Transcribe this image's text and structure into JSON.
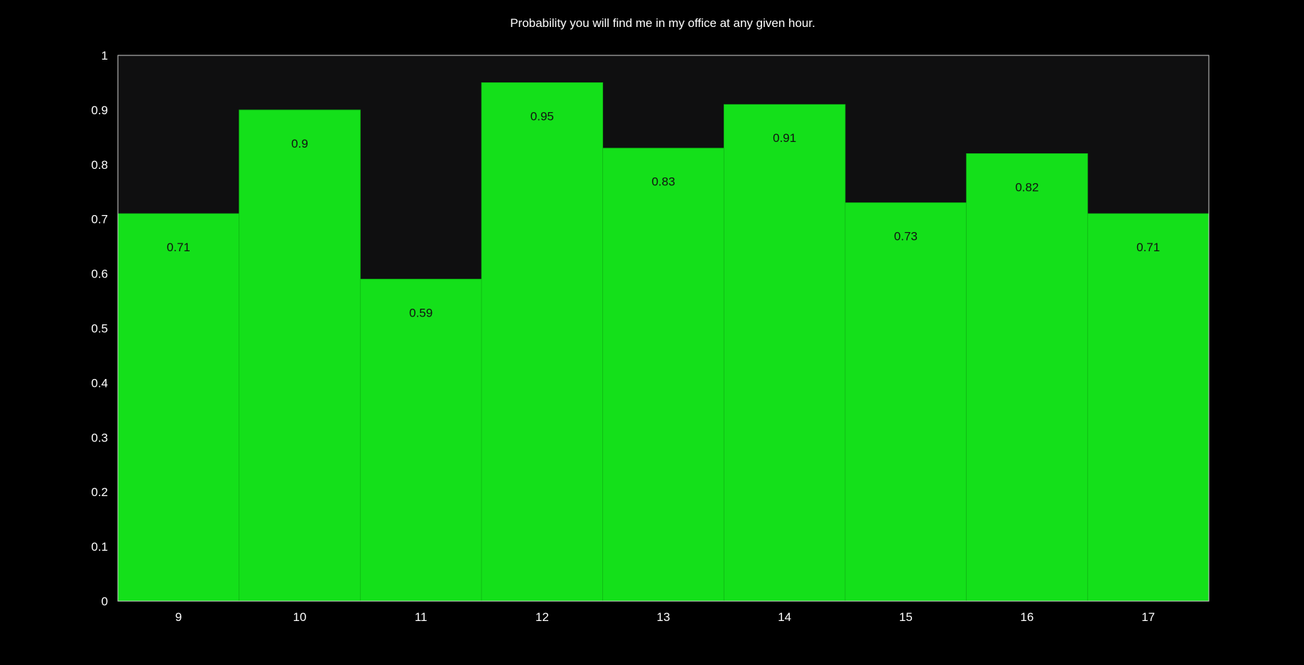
{
  "colors": {
    "background": "#000000",
    "plot_background": "#0f0f10",
    "bar_fill": "#14e01a",
    "bar_stroke": "#0fb814",
    "axis_frame": "#d0d0d0",
    "text": "#ffffff",
    "label_text": "#111111"
  },
  "chart_data": {
    "type": "bar",
    "title": "Probability you will find me in my office at any given hour.",
    "xlabel": "",
    "ylabel": "",
    "categories": [
      "9",
      "10",
      "11",
      "12",
      "13",
      "14",
      "15",
      "16",
      "17"
    ],
    "values": [
      0.71,
      0.9,
      0.59,
      0.95,
      0.83,
      0.91,
      0.73,
      0.82,
      0.71
    ],
    "data_labels": [
      "0.71",
      "0.9",
      "0.59",
      "0.95",
      "0.83",
      "0.91",
      "0.73",
      "0.82",
      "0.71"
    ],
    "ylim": [
      0,
      1
    ],
    "yticks": [
      "0",
      "0.1",
      "0.2",
      "0.3",
      "0.4",
      "0.5",
      "0.6",
      "0.7",
      "0.8",
      "0.9",
      "1"
    ],
    "grid": false,
    "legend": "none"
  }
}
